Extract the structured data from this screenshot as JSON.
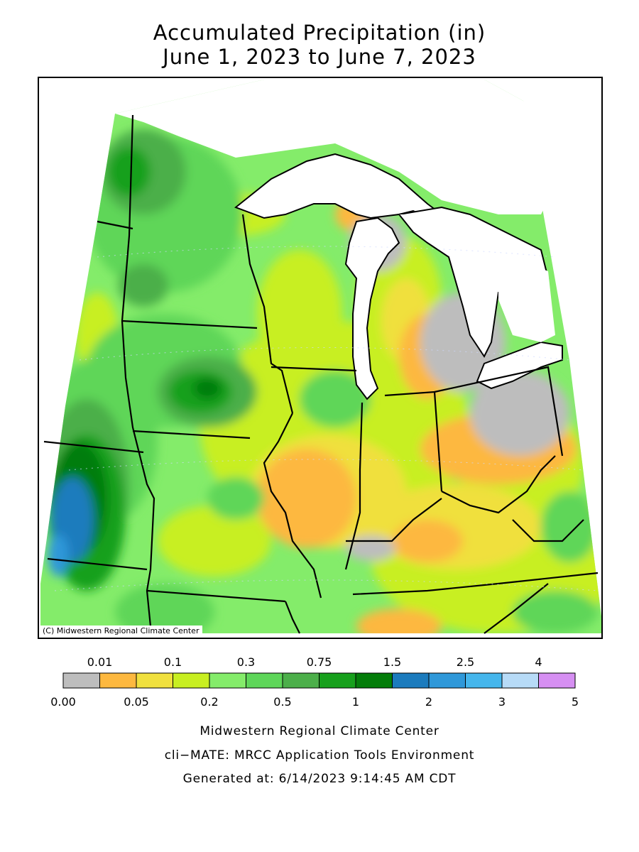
{
  "title": {
    "line1": "Accumulated Precipitation (in)",
    "line2": "June 1, 2023 to June 7, 2023"
  },
  "map": {
    "copyright": "(C) Midwestern Regional Climate Center"
  },
  "legend": {
    "upper_labels": [
      "0.01",
      "0.1",
      "0.3",
      "0.75",
      "1.5",
      "2.5",
      "4"
    ],
    "lower_labels": [
      "0.00",
      "0.05",
      "0.2",
      "0.5",
      "1",
      "2",
      "3",
      "5"
    ],
    "colors": [
      "#bdbdbd",
      "#fdb83f",
      "#f0e03e",
      "#c8ef21",
      "#84ec6a",
      "#5ed659",
      "#4caf4a",
      "#17a01c",
      "#047d0a",
      "#1b7bbd",
      "#2f98d9",
      "#45b6ec",
      "#b7dbf7",
      "#d68ff2"
    ]
  },
  "footer": {
    "line1": "Midwestern Regional Climate Center",
    "line2": "cli−MATE: MRCC Application Tools Environment",
    "line3": "Generated at: 6/14/2023 9:14:45 AM CDT"
  }
}
